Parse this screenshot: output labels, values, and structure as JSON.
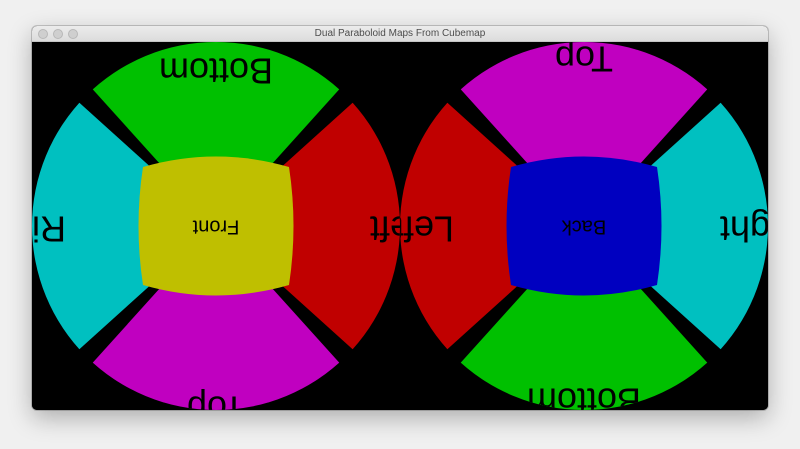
{
  "window": {
    "title": "Dual Paraboloid Maps From Cubemap",
    "buttons": [
      "close-button",
      "minimize-button",
      "zoom-button"
    ]
  },
  "front_map": {
    "center_label": "Front",
    "top_label": "Bottom",
    "bottom_label": "Top",
    "left_label": "Right",
    "right_label": "Left",
    "colors": {
      "center": "#bfbf00",
      "top": "#00c000",
      "bottom": "#c000c0",
      "left": "#00c0c0",
      "right": "#c00000"
    }
  },
  "back_map": {
    "center_label": "Back",
    "top_label": "Top",
    "bottom_label": "Bottom",
    "left_label": "Left",
    "right_label": "Right",
    "colors": {
      "center": "#0000c0",
      "top": "#c000c0",
      "bottom": "#00c000",
      "left": "#c00000",
      "right": "#00c0c0"
    }
  },
  "background_color": "#000000"
}
